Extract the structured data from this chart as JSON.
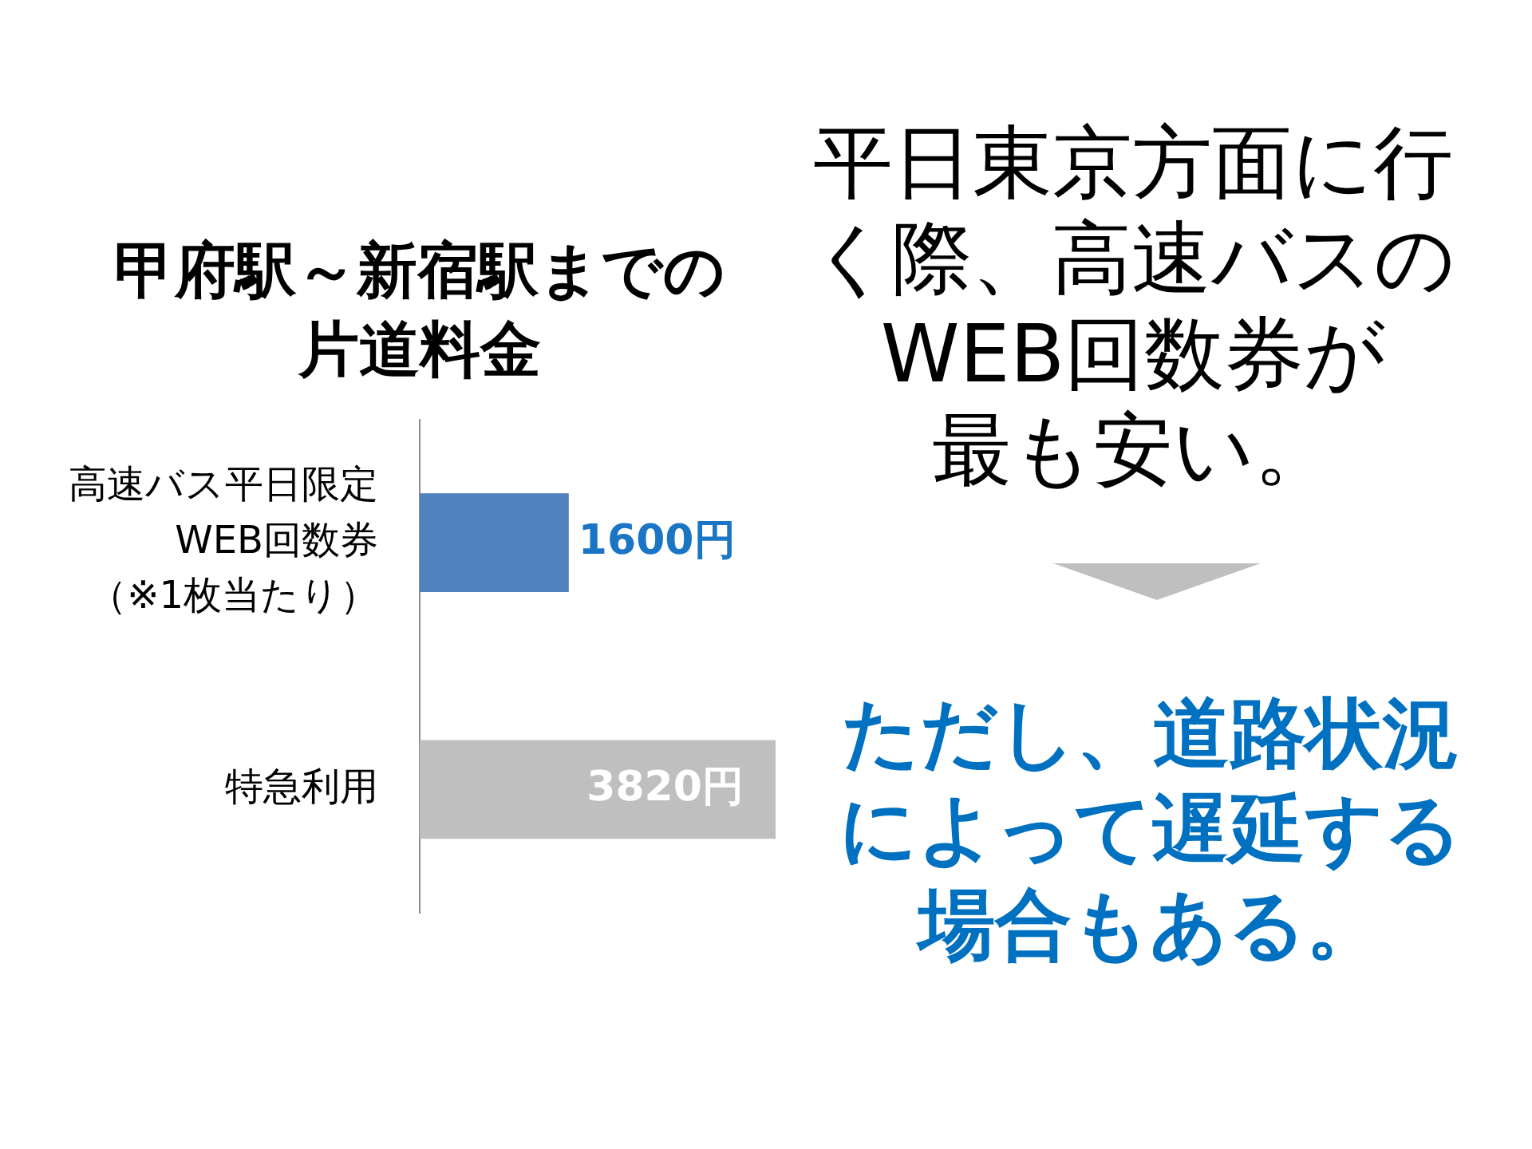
{
  "chart_data": {
    "type": "bar",
    "orientation": "horizontal",
    "tick_labels": "y",
    "title": "甲府駅～新宿駅までの片道料金",
    "categories": [
      "高速バス平日限定WEB回数券（※1枚当たり）",
      "特急利用"
    ],
    "values": [
      1600,
      3820
    ],
    "colors": [
      "#4f81bd",
      "#bfbfbf"
    ],
    "value_labels": [
      "1600円",
      "3820円"
    ],
    "annotations": [
      "平日東京方面に行く際、高速バスのWEB回数券が最も安い。",
      "ただし、道路状況によって遅延する場合もある。"
    ]
  }
}
